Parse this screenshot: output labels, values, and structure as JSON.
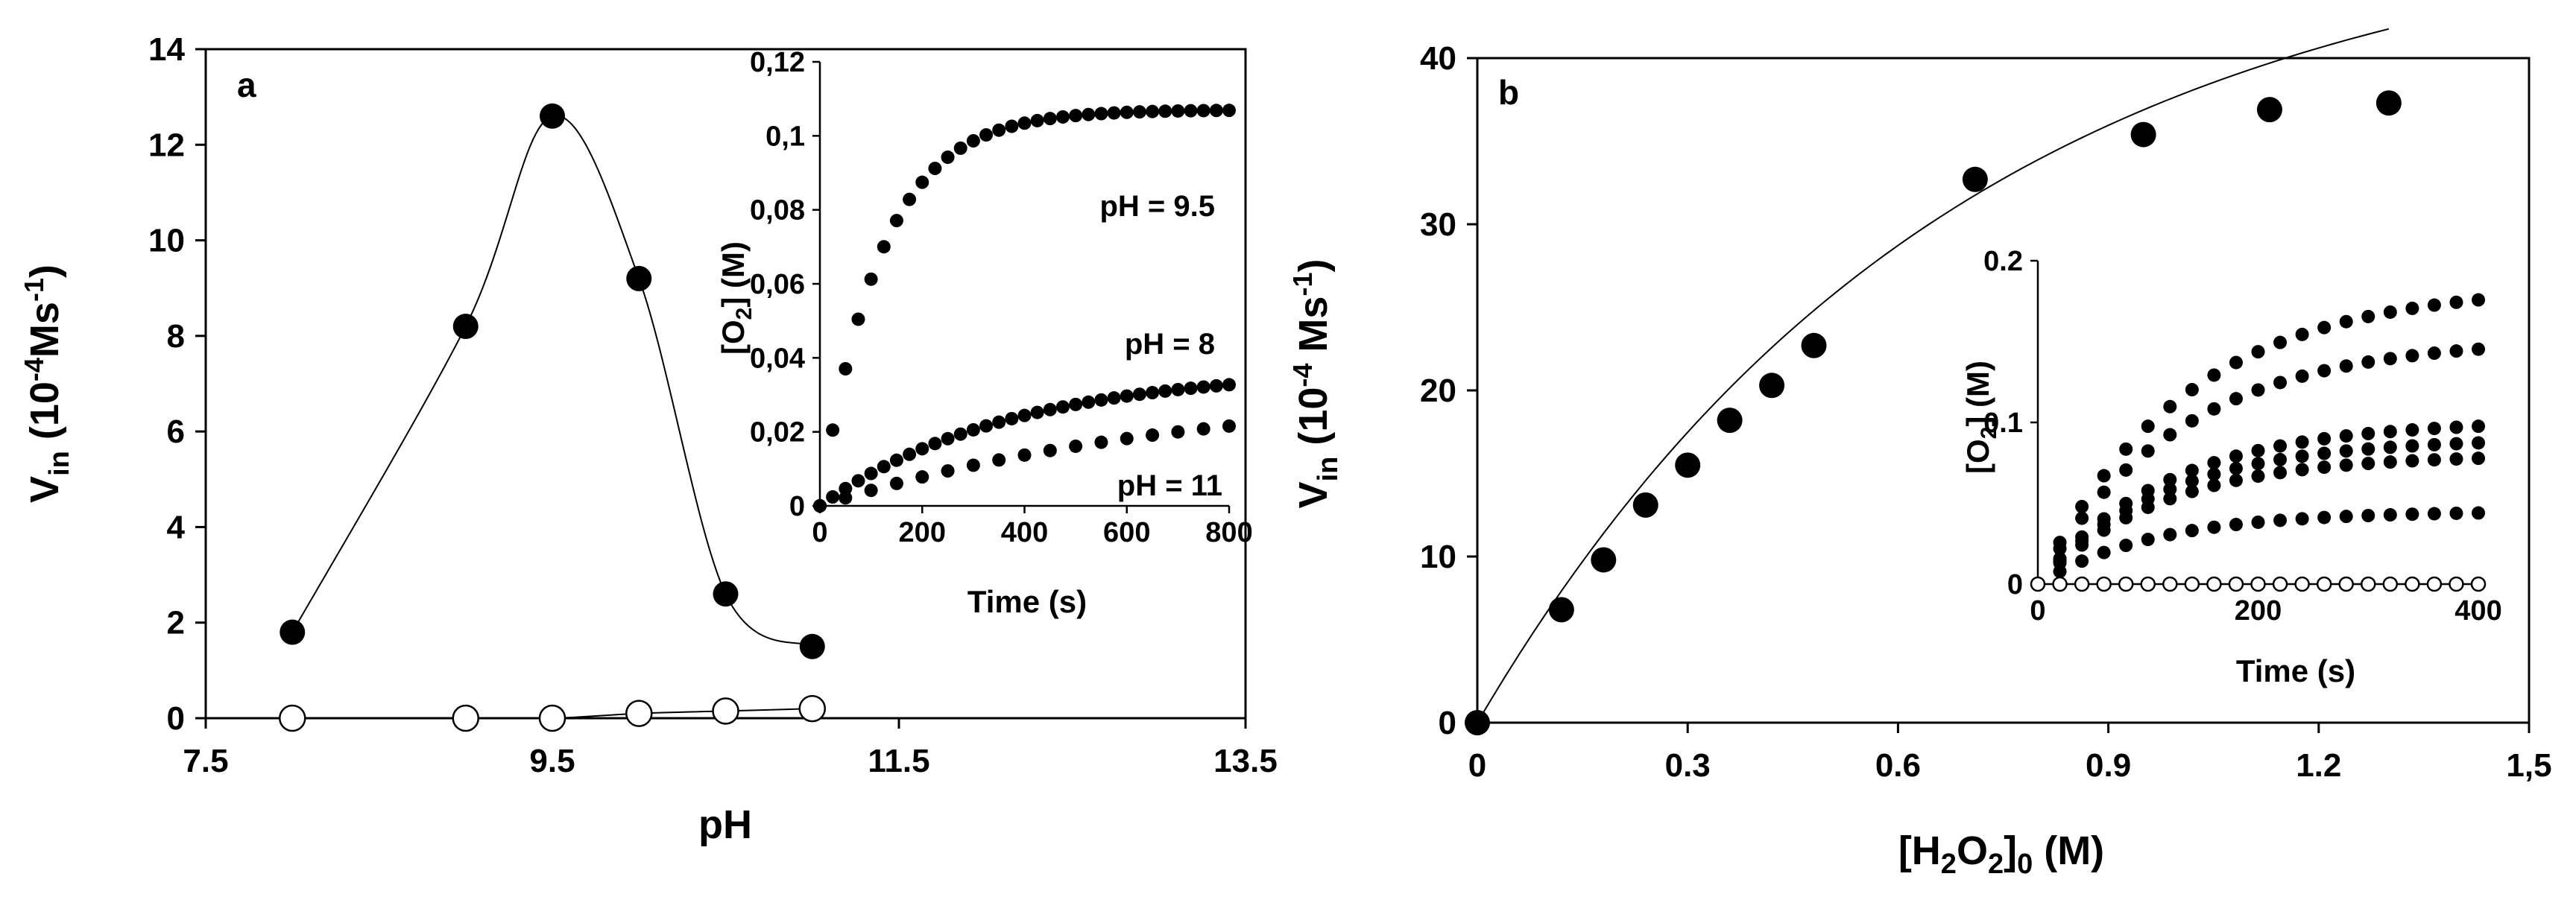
{
  "colors": {
    "ink": "#000000",
    "background": "#ffffff",
    "open_marker_fill": "#ffffff"
  },
  "chart_data": [
    {
      "id": "panel-a",
      "type": "scatter",
      "panel_label": "a",
      "title": "",
      "xlabel": "pH",
      "ylabel": {
        "base": "V",
        "sub": "in",
        "rest": " (10",
        "sup": "-4",
        "tail": "Ms",
        "sup2": "-1",
        "close": ")"
      },
      "xlim": [
        7.5,
        13.5
      ],
      "ylim": [
        0,
        14
      ],
      "xticks": [
        7.5,
        9.5,
        11.5,
        13.5
      ],
      "xtick_labels": [
        "7.5",
        "9.5",
        "11.5",
        "13.5"
      ],
      "yticks": [
        0,
        2,
        4,
        6,
        8,
        10,
        12,
        14
      ],
      "ytick_labels": [
        "0",
        "2",
        "4",
        "6",
        "8",
        "10",
        "12",
        "14"
      ],
      "grid": false,
      "series": [
        {
          "name": "filled",
          "marker": "filled-circle",
          "connect": "smooth",
          "x": [
            8,
            9,
            9.5,
            10,
            10.5,
            11
          ],
          "y": [
            1.8,
            8.2,
            12.6,
            9.2,
            2.6,
            1.5
          ]
        },
        {
          "name": "open",
          "marker": "open-circle",
          "connect": "smooth",
          "x": [
            8,
            9,
            9.5,
            10,
            10.5,
            11
          ],
          "y": [
            0,
            0,
            0,
            0.1,
            0.15,
            0.2
          ]
        }
      ],
      "inset": {
        "type": "scatter",
        "xlabel": "Time (s)",
        "ylabel": {
          "open": "[O",
          "sub": "2",
          "close": "] (M)"
        },
        "xlim": [
          0,
          800
        ],
        "ylim": [
          0,
          0.12
        ],
        "xticks": [
          0,
          200,
          400,
          600,
          800
        ],
        "xtick_labels": [
          "0",
          "200",
          "400",
          "600",
          "800"
        ],
        "yticks": [
          0,
          0.02,
          0.04,
          0.06,
          0.08,
          0.1,
          0.12
        ],
        "ytick_labels": [
          "0",
          "0,02",
          "0,04",
          "0,06",
          "0,08",
          "0,1",
          "0,12"
        ],
        "series": [
          {
            "name": "pH = 9.5",
            "model": "saturating",
            "amax": 0.107,
            "k": 0.0085,
            "t0": 0,
            "tmax": 800,
            "step": 25
          },
          {
            "name": "pH = 8",
            "model": "saturating",
            "amax": 0.037,
            "k": 0.0027,
            "t0": 0,
            "tmax": 800,
            "step": 25
          },
          {
            "name": "pH = 11",
            "model": "saturating",
            "amax": 0.032,
            "k": 0.0014,
            "t0": 0,
            "tmax": 800,
            "step": 50
          }
        ],
        "labels": [
          "pH = 9.5",
          "pH = 8",
          "pH = 11"
        ]
      }
    },
    {
      "id": "panel-b",
      "type": "scatter",
      "panel_label": "b",
      "title": "",
      "xlabel": {
        "open": "[H",
        "sub1": "2",
        "mid": "O",
        "sub2": "2",
        "close": "]",
        "sub3": "0",
        "rest": " (M)"
      },
      "ylabel": {
        "base": "V",
        "sub": "in",
        "rest": " (10",
        "sup": "-4",
        "tail": " Ms",
        "sup2": "-1",
        "close": ")"
      },
      "xlim": [
        0,
        1.5
      ],
      "ylim": [
        0,
        40
      ],
      "xticks": [
        0,
        0.3,
        0.6,
        0.9,
        1.2,
        1.5
      ],
      "xtick_labels": [
        "0",
        "0.3",
        "0.6",
        "0.9",
        "1.2",
        "1,5"
      ],
      "yticks": [
        0,
        10,
        20,
        30,
        40
      ],
      "ytick_labels": [
        "0",
        "10",
        "20",
        "30",
        "40"
      ],
      "grid": false,
      "series": [
        {
          "name": "data",
          "marker": "filled-circle",
          "x": [
            0,
            0.12,
            0.18,
            0.24,
            0.3,
            0.36,
            0.42,
            0.48,
            0.71,
            0.95,
            1.13,
            1.3
          ],
          "y": [
            0,
            6.8,
            9.8,
            13.1,
            15.5,
            18.2,
            20.3,
            22.7,
            32.7,
            35.4,
            36.9,
            37.3
          ]
        },
        {
          "name": "fit",
          "marker": "none",
          "model": "fit-curve",
          "a": 49,
          "b": 0.68,
          "c": 0,
          "d": 0.0,
          "x0": 0,
          "x1": 1.3
        }
      ],
      "inset": {
        "type": "scatter",
        "xlabel": "Time (s)",
        "ylabel": {
          "open": "[O",
          "sub": "2",
          "close": "] (M)"
        },
        "xlim": [
          0,
          400
        ],
        "ylim": [
          0,
          0.2
        ],
        "xticks": [
          0,
          200,
          400
        ],
        "xtick_labels": [
          "0",
          "200",
          "400"
        ],
        "yticks": [
          0,
          0.1,
          0.2
        ],
        "ytick_labels": [
          "0",
          "0.1",
          "0.2"
        ],
        "series": [
          {
            "name": "s1",
            "model": "saturating",
            "amax": 0.185,
            "k": 0.0075,
            "t0": 0,
            "tmax": 400,
            "step": 20,
            "marker": "filled-circle"
          },
          {
            "name": "s2",
            "model": "saturating",
            "amax": 0.152,
            "k": 0.0078,
            "t0": 0,
            "tmax": 400,
            "step": 20,
            "marker": "filled-circle"
          },
          {
            "name": "s3",
            "model": "saturating",
            "amax": 0.101,
            "k": 0.0085,
            "t0": 0,
            "tmax": 400,
            "step": 20,
            "marker": "filled-circle"
          },
          {
            "name": "s4",
            "model": "saturating",
            "amax": 0.09,
            "k": 0.0088,
            "t0": 0,
            "tmax": 400,
            "step": 20,
            "marker": "filled-circle"
          },
          {
            "name": "s5",
            "model": "saturating",
            "amax": 0.08,
            "k": 0.009,
            "t0": 0,
            "tmax": 400,
            "step": 20,
            "marker": "filled-circle"
          },
          {
            "name": "s6",
            "model": "saturating",
            "amax": 0.045,
            "k": 0.0095,
            "t0": 0,
            "tmax": 400,
            "step": 20,
            "marker": "filled-circle"
          },
          {
            "name": "s7",
            "model": "constant",
            "value": 0,
            "t0": 0,
            "tmax": 400,
            "step": 20,
            "marker": "open-circle"
          }
        ]
      }
    }
  ]
}
